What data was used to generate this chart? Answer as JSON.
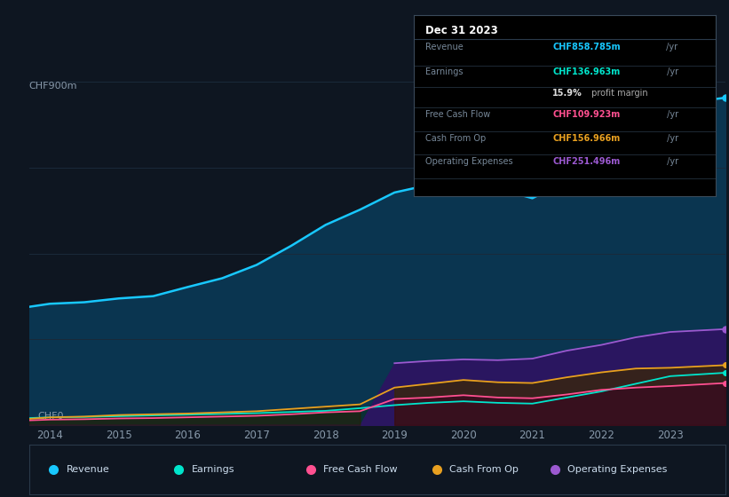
{
  "background_color": "#0e1621",
  "plot_bg_color": "#0e1621",
  "years": [
    2013.7,
    2014,
    2014.5,
    2015,
    2015.5,
    2016,
    2016.5,
    2017,
    2017.5,
    2018,
    2018.5,
    2019,
    2019.5,
    2020,
    2020.5,
    2021,
    2021.5,
    2022,
    2022.5,
    2023,
    2023.8
  ],
  "revenue": [
    310,
    318,
    322,
    332,
    338,
    362,
    385,
    420,
    470,
    525,
    565,
    610,
    630,
    640,
    620,
    595,
    640,
    700,
    760,
    840,
    858.785
  ],
  "earnings": [
    18,
    20,
    21,
    23,
    25,
    27,
    29,
    31,
    34,
    37,
    44,
    52,
    58,
    62,
    58,
    56,
    72,
    88,
    108,
    128,
    136.963
  ],
  "fcf": [
    12,
    14,
    15,
    17,
    18,
    20,
    22,
    24,
    28,
    33,
    36,
    68,
    72,
    78,
    72,
    70,
    80,
    92,
    98,
    102,
    109.923
  ],
  "cash_from_op": [
    16,
    20,
    22,
    26,
    28,
    30,
    33,
    36,
    42,
    48,
    54,
    98,
    108,
    118,
    112,
    110,
    125,
    138,
    148,
    150,
    156.966
  ],
  "op_expenses": [
    0,
    0,
    0,
    0,
    0,
    0,
    0,
    0,
    0,
    0,
    0,
    162,
    168,
    172,
    170,
    174,
    195,
    210,
    230,
    244,
    251.496
  ],
  "ylim": [
    0,
    900
  ],
  "ylabel_top": "CHF900m",
  "ylabel_bottom": "CHF0",
  "xlabel_ticks": [
    2014,
    2015,
    2016,
    2017,
    2018,
    2019,
    2020,
    2021,
    2022,
    2023
  ],
  "revenue_color": "#18c8ff",
  "earnings_color": "#00e5cc",
  "fcf_color": "#ff5090",
  "cash_color": "#e8a020",
  "op_expenses_color": "#9b59d0",
  "revenue_fill": "#0a3a5a",
  "earnings_fill": "#0a3030",
  "op_fill": "#2d1a5e",
  "grid_color": "#1a2a3a",
  "dot_color_revenue": "#18c8ff",
  "dot_color_opex": "#9b59d0",
  "dot_color_earnings": "#00e5cc",
  "dot_color_fcf": "#ff5090",
  "dot_color_cash": "#e8a020",
  "info_box": {
    "title": "Dec 31 2023",
    "rows": [
      {
        "label": "Revenue",
        "value": "CHF858.785m",
        "suffix": " /yr",
        "color": "#18c8ff"
      },
      {
        "label": "Earnings",
        "value": "CHF136.963m",
        "suffix": " /yr",
        "color": "#00e5cc"
      },
      {
        "label": "",
        "value": "15.9%",
        "suffix": " profit margin",
        "color": "#ffffff"
      },
      {
        "label": "Free Cash Flow",
        "value": "CHF109.923m",
        "suffix": " /yr",
        "color": "#ff5090"
      },
      {
        "label": "Cash From Op",
        "value": "CHF156.966m",
        "suffix": " /yr",
        "color": "#e8a020"
      },
      {
        "label": "Operating Expenses",
        "value": "CHF251.496m",
        "suffix": " /yr",
        "color": "#9b59d0"
      }
    ]
  },
  "legend_items": [
    {
      "label": "Revenue",
      "color": "#18c8ff"
    },
    {
      "label": "Earnings",
      "color": "#00e5cc"
    },
    {
      "label": "Free Cash Flow",
      "color": "#ff5090"
    },
    {
      "label": "Cash From Op",
      "color": "#e8a020"
    },
    {
      "label": "Operating Expenses",
      "color": "#9b59d0"
    }
  ]
}
